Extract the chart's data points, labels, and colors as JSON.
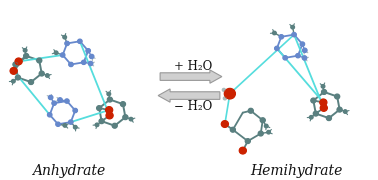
{
  "background_color": "#ffffff",
  "label_left": "Anhydrate",
  "label_right": "Hemihydrate",
  "arrow_top_text": "+ H₂O",
  "arrow_bottom_text": "− H₂O",
  "arrow_fill": "#d0d0d0",
  "arrow_edge": "#999999",
  "text_color": "#111111",
  "label_fontsize": 10,
  "arrow_text_fontsize": 8.5,
  "figsize": [
    3.78,
    1.8
  ],
  "dpi": 100,
  "C": "#5a8080",
  "N": "#6688cc",
  "O": "#cc2200",
  "H": "#aabbbb",
  "bond": "#5a8080",
  "hbond": "#55dddd",
  "small_C": "#606e6e",
  "small_N": "#8899cc"
}
